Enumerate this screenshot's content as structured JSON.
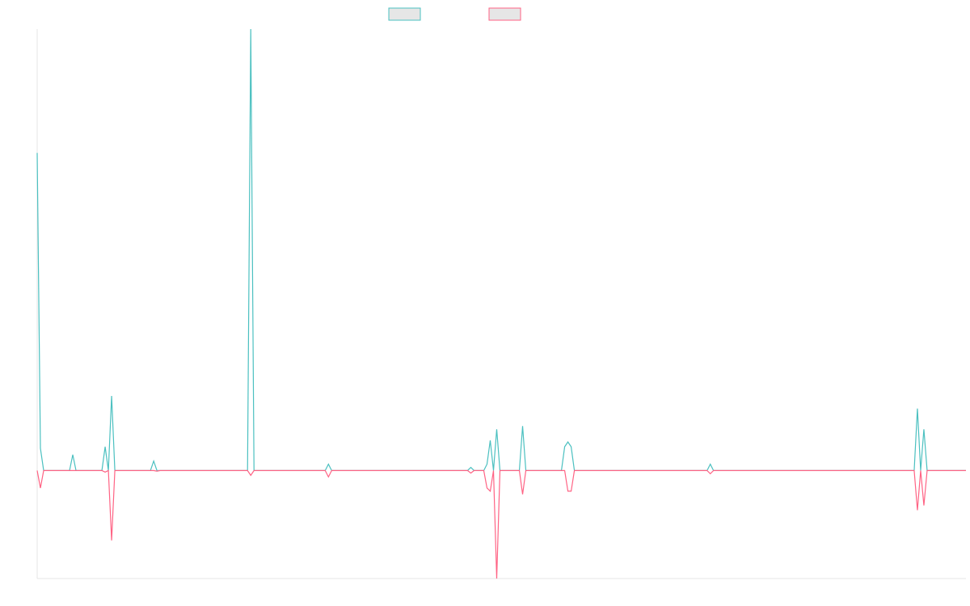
{
  "chart_data": {
    "type": "line",
    "title": "",
    "xlabel": "",
    "ylabel": "",
    "grid": false,
    "legend_position": "top-center",
    "x_range": [
      0,
      287
    ],
    "ylim": [
      -0.34,
      1.39
    ],
    "series": [
      {
        "name": "",
        "color": "#4bc0c0",
        "legend_fill": "#e6e6e6",
        "points": [
          [
            0,
            1.0
          ],
          [
            1,
            0.07
          ],
          [
            2,
            0.0
          ],
          [
            10,
            0.0
          ],
          [
            11,
            0.05
          ],
          [
            12,
            0.0
          ],
          [
            20,
            0.0
          ],
          [
            21,
            0.075
          ],
          [
            22,
            0.0
          ],
          [
            23,
            0.235
          ],
          [
            24,
            0.0
          ],
          [
            35,
            0.0
          ],
          [
            36,
            0.03
          ],
          [
            37,
            0.0
          ],
          [
            43,
            0.0
          ],
          [
            65,
            0.0
          ],
          [
            66,
            1.39
          ],
          [
            67,
            0.0
          ],
          [
            89,
            0.0
          ],
          [
            90,
            0.02
          ],
          [
            91,
            0.0
          ],
          [
            133,
            0.0
          ],
          [
            134,
            0.01
          ],
          [
            135,
            0.0
          ],
          [
            138,
            0.0
          ],
          [
            139,
            0.02
          ],
          [
            140,
            0.095
          ],
          [
            141,
            0.0
          ],
          [
            142,
            0.13
          ],
          [
            143,
            0.0
          ],
          [
            149,
            0.0
          ],
          [
            150,
            0.14
          ],
          [
            151,
            0.0
          ],
          [
            162,
            0.0
          ],
          [
            163,
            0.075
          ],
          [
            164,
            0.09
          ],
          [
            165,
            0.075
          ],
          [
            166,
            0.0
          ],
          [
            207,
            0.0
          ],
          [
            208,
            0.02
          ],
          [
            209,
            0.0
          ],
          [
            271,
            0.0
          ],
          [
            272,
            0.195
          ],
          [
            273,
            0.0
          ],
          [
            274,
            0.13
          ],
          [
            275,
            0.0
          ],
          [
            287,
            0.0
          ]
        ]
      },
      {
        "name": "",
        "color": "#ff6384",
        "legend_fill": "#e6e6e6",
        "points": [
          [
            0,
            0.0
          ],
          [
            1,
            -0.055
          ],
          [
            2,
            0.0
          ],
          [
            20,
            0.0
          ],
          [
            21,
            -0.005
          ],
          [
            22,
            0.0
          ],
          [
            23,
            -0.22
          ],
          [
            24,
            0.0
          ],
          [
            36,
            0.0
          ],
          [
            37,
            -0.002
          ],
          [
            38,
            0.0
          ],
          [
            65,
            0.0
          ],
          [
            66,
            -0.015
          ],
          [
            67,
            0.0
          ],
          [
            89,
            0.0
          ],
          [
            90,
            -0.02
          ],
          [
            91,
            0.0
          ],
          [
            133,
            0.0
          ],
          [
            134,
            -0.008
          ],
          [
            135,
            0.0
          ],
          [
            138,
            0.0
          ],
          [
            139,
            -0.055
          ],
          [
            140,
            -0.065
          ],
          [
            141,
            0.0
          ],
          [
            142,
            -0.34
          ],
          [
            143,
            0.0
          ],
          [
            149,
            0.0
          ],
          [
            150,
            -0.075
          ],
          [
            151,
            0.0
          ],
          [
            163,
            0.0
          ],
          [
            164,
            -0.065
          ],
          [
            165,
            -0.065
          ],
          [
            166,
            0.0
          ],
          [
            207,
            0.0
          ],
          [
            208,
            -0.01
          ],
          [
            209,
            0.0
          ],
          [
            271,
            0.0
          ],
          [
            272,
            -0.125
          ],
          [
            273,
            0.0
          ],
          [
            274,
            -0.11
          ],
          [
            275,
            0.0
          ],
          [
            287,
            0.0
          ]
        ]
      }
    ]
  }
}
